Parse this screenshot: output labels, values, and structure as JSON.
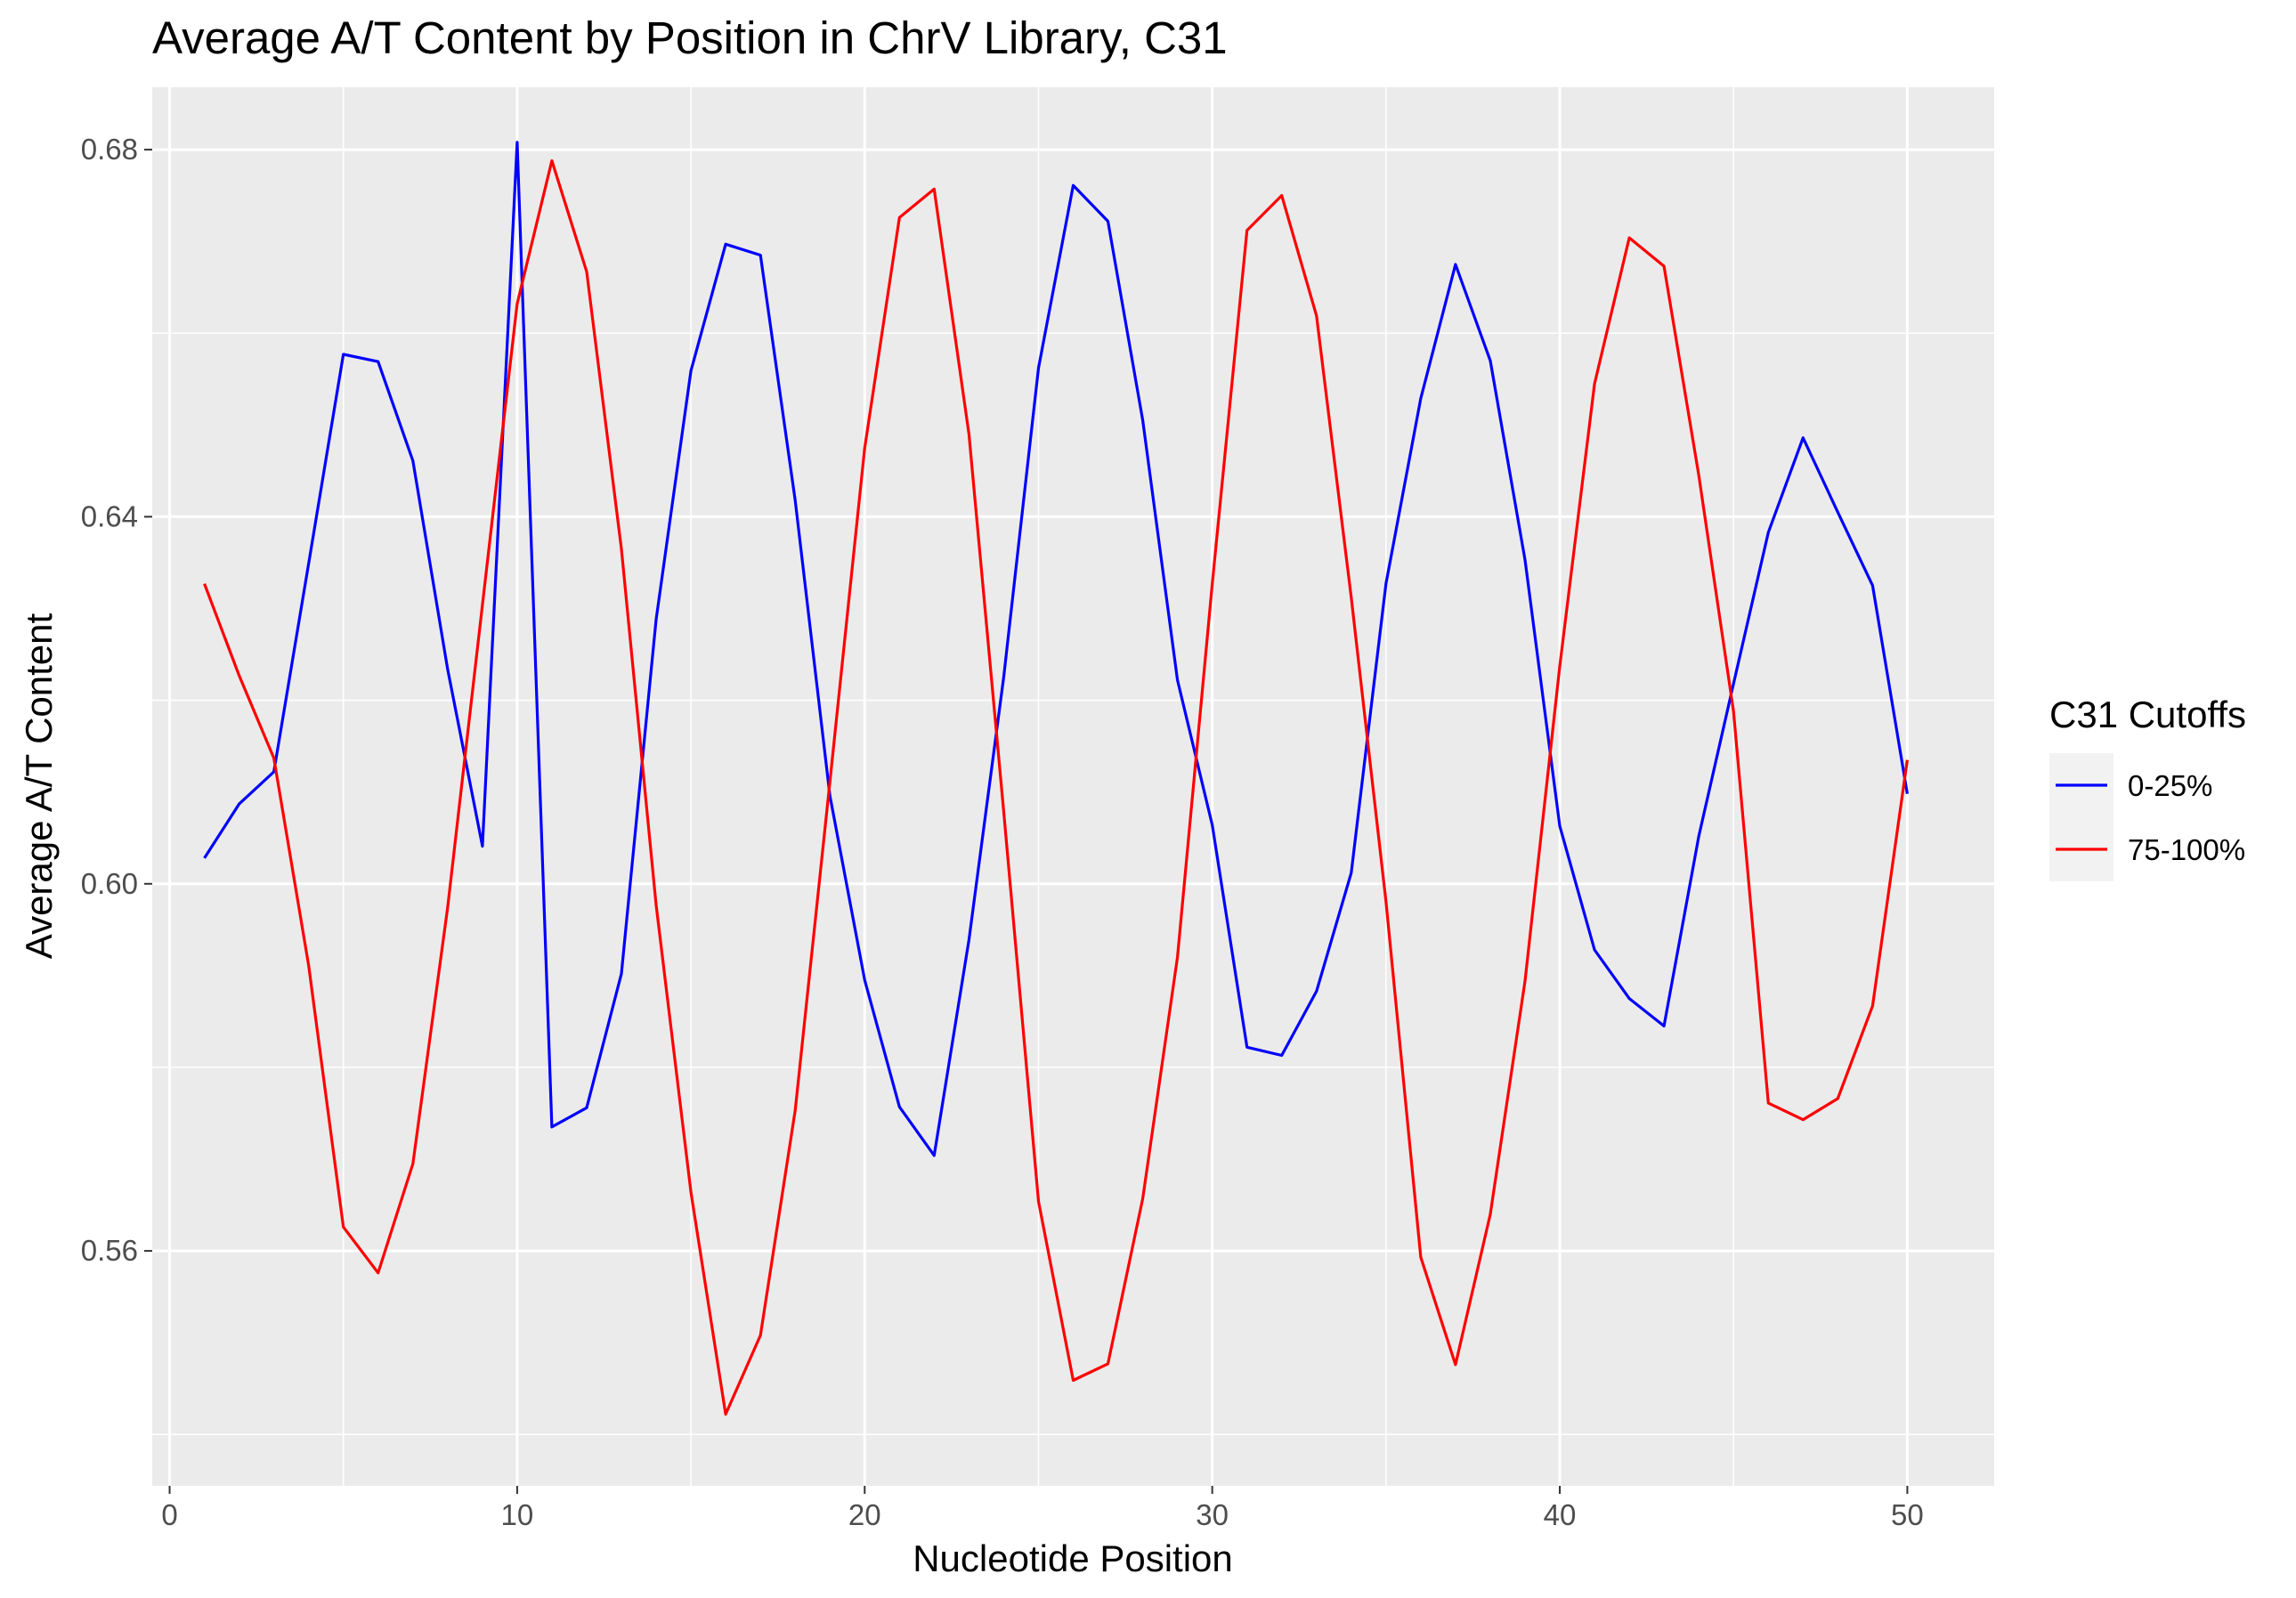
{
  "chart_data": {
    "type": "line",
    "title": "Average A/T Content by Position in ChrV Library, C31",
    "xlabel": "Nucleotide Position",
    "ylabel": "Average A/T Content",
    "xlim": [
      -0.5,
      52.5
    ],
    "ylim": [
      0.5344,
      0.6868
    ],
    "x_ticks": [
      0,
      10,
      20,
      30,
      40,
      50
    ],
    "x_tick_labels": [
      "0",
      "10",
      "20",
      "30",
      "40",
      "50"
    ],
    "y_ticks": [
      0.56,
      0.6,
      0.64,
      0.68
    ],
    "y_tick_labels": [
      "0.56",
      "0.60",
      "0.64",
      "0.68"
    ],
    "grid": true,
    "legend": {
      "title": "C31 Cutoffs",
      "position": "right"
    },
    "x": [
      1,
      2,
      3,
      4,
      5,
      6,
      7,
      8,
      9,
      10,
      11,
      12,
      13,
      14,
      15,
      16,
      17,
      18,
      19,
      20,
      21,
      22,
      23,
      24,
      25,
      26,
      27,
      28,
      29,
      30,
      31,
      32,
      33,
      34,
      35,
      36,
      37,
      38,
      39,
      40,
      41,
      42,
      43,
      44,
      45,
      46,
      47,
      48,
      49,
      50
    ],
    "series": [
      {
        "name": "0-25%",
        "color": "#0000ff",
        "values": [
          0.6028,
          0.6087,
          0.6122,
          0.6349,
          0.6577,
          0.6569,
          0.6461,
          0.6234,
          0.6041,
          0.6808,
          0.5735,
          0.5756,
          0.5902,
          0.6288,
          0.6559,
          0.6697,
          0.6685,
          0.6418,
          0.6096,
          0.5895,
          0.5757,
          0.5704,
          0.5939,
          0.6225,
          0.6562,
          0.6761,
          0.6722,
          0.6505,
          0.6222,
          0.6064,
          0.5822,
          0.5813,
          0.5883,
          0.6012,
          0.6327,
          0.6529,
          0.6675,
          0.657,
          0.6353,
          0.6063,
          0.5928,
          0.5875,
          0.5845,
          0.6052,
          0.6218,
          0.6383,
          0.6486,
          0.6405,
          0.6325,
          0.6098
        ],
        "note": ""
      },
      {
        "name": "75-100%",
        "color": "#ff0000",
        "values": [
          0.6327,
          0.6227,
          0.6137,
          0.5911,
          0.5626,
          0.5576,
          0.5695,
          0.5974,
          0.6304,
          0.6632,
          0.6788,
          0.6667,
          0.6365,
          0.5977,
          0.5664,
          0.5422,
          0.5508,
          0.5753,
          0.6111,
          0.6475,
          0.6726,
          0.6757,
          0.649,
          0.6079,
          0.5654,
          0.5459,
          0.5477,
          0.5657,
          0.592,
          0.6327,
          0.6712,
          0.675,
          0.6619,
          0.6312,
          0.5981,
          0.5593,
          0.5476,
          0.564,
          0.5894,
          0.6237,
          0.6545,
          0.6704,
          0.6673,
          0.6445,
          0.6188,
          0.5761,
          0.5743,
          0.5766,
          0.5867,
          0.6135
        ]
      }
    ]
  }
}
